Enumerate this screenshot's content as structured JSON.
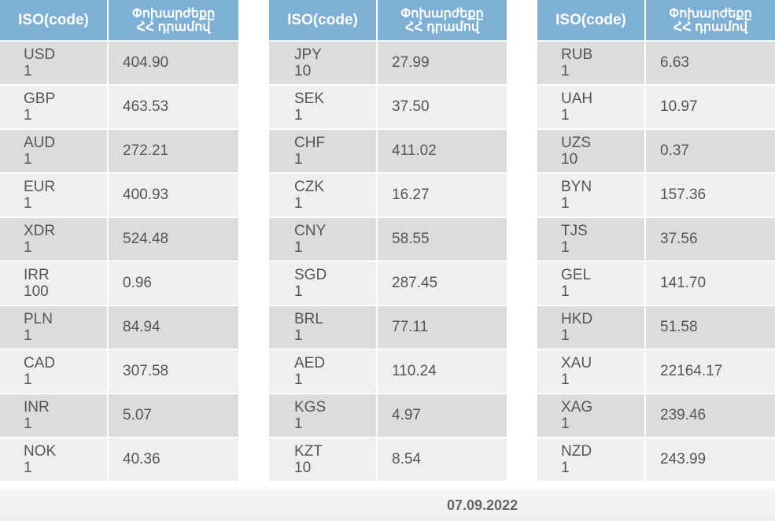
{
  "headers": {
    "iso": "ISO(code)",
    "value_line1": "Փոխարժեքը",
    "value_line2": "ՀՀ դրամով"
  },
  "tables": [
    {
      "rows": [
        {
          "code": "USD",
          "unit": "1",
          "value": "404.90"
        },
        {
          "code": "GBP",
          "unit": "1",
          "value": "463.53"
        },
        {
          "code": "AUD",
          "unit": "1",
          "value": "272.21"
        },
        {
          "code": "EUR",
          "unit": "1",
          "value": "400.93"
        },
        {
          "code": "XDR",
          "unit": "1",
          "value": "524.48"
        },
        {
          "code": "IRR",
          "unit": "100",
          "value": "0.96"
        },
        {
          "code": "PLN",
          "unit": "1",
          "value": "84.94"
        },
        {
          "code": "CAD",
          "unit": "1",
          "value": "307.58"
        },
        {
          "code": "INR",
          "unit": "1",
          "value": "5.07"
        },
        {
          "code": "NOK",
          "unit": "1",
          "value": "40.36"
        }
      ]
    },
    {
      "rows": [
        {
          "code": "JPY",
          "unit": "10",
          "value": "27.99"
        },
        {
          "code": "SEK",
          "unit": "1",
          "value": "37.50"
        },
        {
          "code": "CHF",
          "unit": "1",
          "value": "411.02"
        },
        {
          "code": "CZK",
          "unit": "1",
          "value": "16.27"
        },
        {
          "code": "CNY",
          "unit": "1",
          "value": "58.55"
        },
        {
          "code": "SGD",
          "unit": "1",
          "value": "287.45"
        },
        {
          "code": "BRL",
          "unit": "1",
          "value": "77.11"
        },
        {
          "code": "AED",
          "unit": "1",
          "value": "110.24"
        },
        {
          "code": "KGS",
          "unit": "1",
          "value": "4.97"
        },
        {
          "code": "KZT",
          "unit": "10",
          "value": "8.54"
        }
      ]
    },
    {
      "rows": [
        {
          "code": "RUB",
          "unit": "1",
          "value": "6.63"
        },
        {
          "code": "UAH",
          "unit": "1",
          "value": "10.97"
        },
        {
          "code": "UZS",
          "unit": "10",
          "value": "0.37"
        },
        {
          "code": "BYN",
          "unit": "1",
          "value": "157.36"
        },
        {
          "code": "TJS",
          "unit": "1",
          "value": "37.56"
        },
        {
          "code": "GEL",
          "unit": "1",
          "value": "141.70"
        },
        {
          "code": "HKD",
          "unit": "1",
          "value": "51.58"
        },
        {
          "code": "XAU",
          "unit": "1",
          "value": "22164.17"
        },
        {
          "code": "XAG",
          "unit": "1",
          "value": "239.46"
        },
        {
          "code": "NZD",
          "unit": "1",
          "value": "243.99"
        }
      ]
    }
  ],
  "footer": {
    "date": "07.09.2022"
  },
  "colors": {
    "header_bg": "#7eb0d6",
    "row_dark": "#dcdcdc",
    "row_light": "#efefef",
    "text": "#555555"
  }
}
